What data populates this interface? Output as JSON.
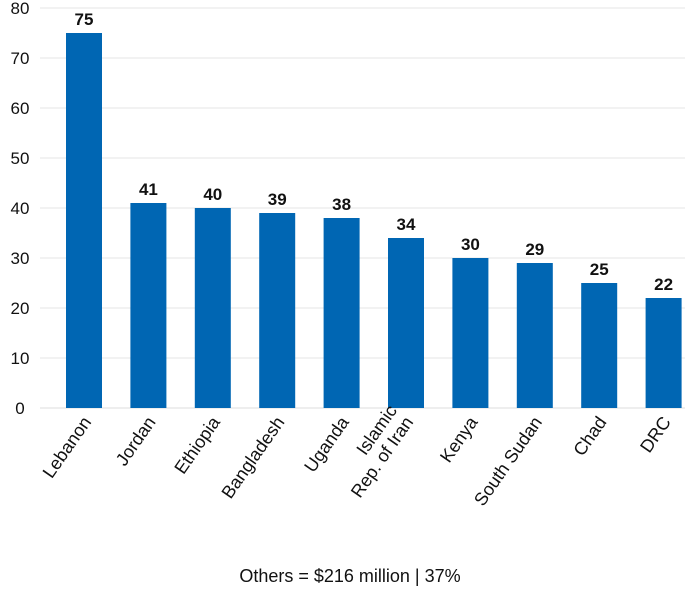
{
  "chart_data": {
    "type": "bar",
    "categories": [
      [
        "Lebanon"
      ],
      [
        "Jordan"
      ],
      [
        "Ethiopia"
      ],
      [
        "Bangladesh"
      ],
      [
        "Uganda"
      ],
      [
        "Islamic",
        "Rep. of Iran"
      ],
      [
        "Kenya"
      ],
      [
        "South Sudan"
      ],
      [
        "Chad"
      ],
      [
        "DRC"
      ]
    ],
    "values": [
      75,
      41,
      40,
      39,
      38,
      34,
      30,
      29,
      25,
      22
    ],
    "data_labels": [
      "75",
      "41",
      "40",
      "39",
      "38",
      "34",
      "30",
      "29",
      "25",
      "22"
    ],
    "ylim": [
      0,
      80
    ],
    "yticks": [
      0,
      10,
      20,
      30,
      40,
      50,
      60,
      70,
      80
    ],
    "ytick_labels": [
      "0",
      "10",
      "20",
      "30",
      "40",
      "50",
      "60",
      "70",
      "80"
    ],
    "grid": true,
    "bar_color": "#0066b3",
    "title": "",
    "xlabel": "",
    "ylabel": ""
  },
  "footnote": "Others = $216 million | 37%"
}
